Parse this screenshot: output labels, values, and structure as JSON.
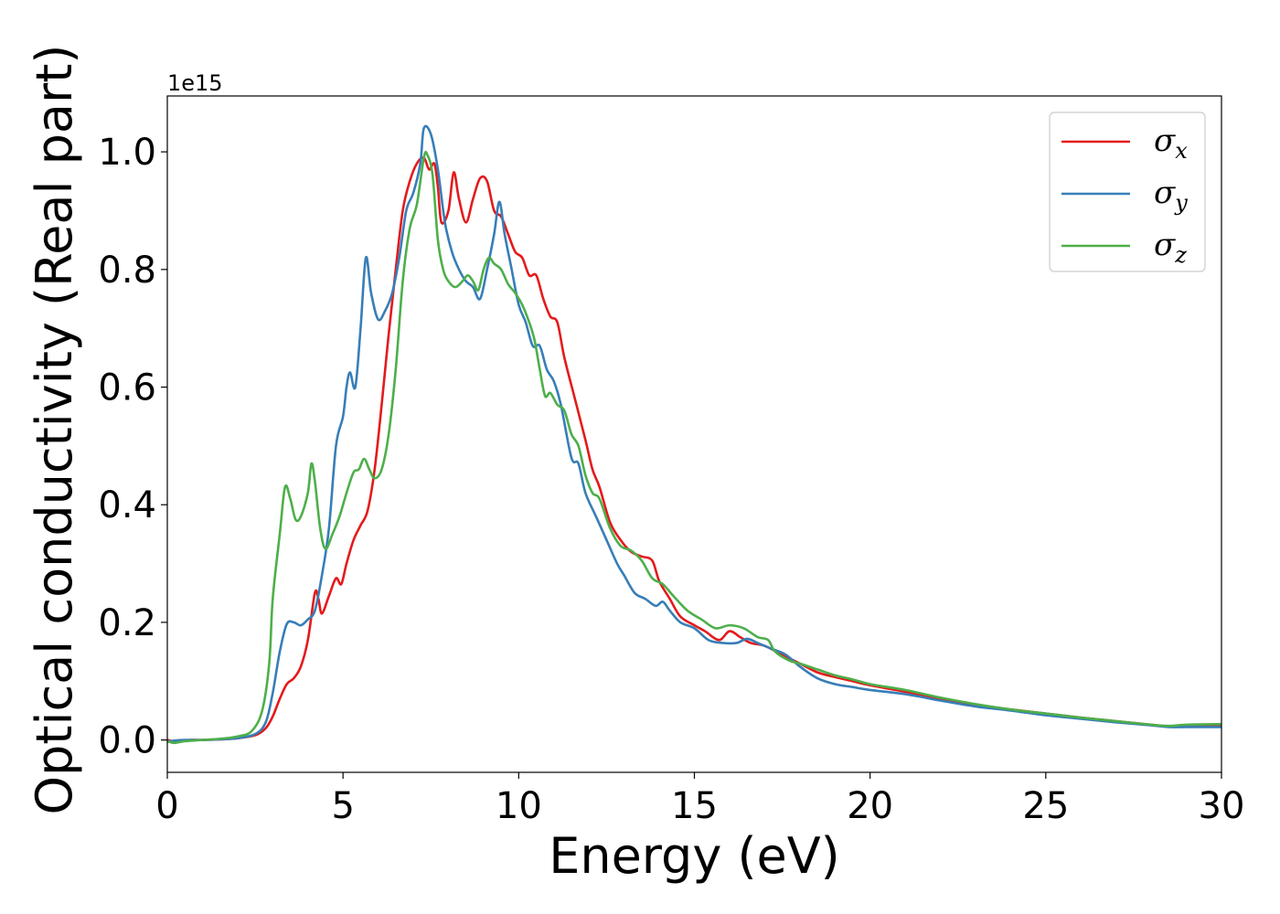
{
  "chart_data": {
    "type": "line",
    "xlabel": "Energy (eV)",
    "ylabel": "Optical conductivity (Real part)",
    "y_offset_text": "1e15",
    "xlim": [
      0,
      30
    ],
    "ylim": [
      -0.055,
      1.095
    ],
    "x_ticks": [
      0,
      5,
      10,
      15,
      20,
      25,
      30
    ],
    "x_tick_labels": [
      "0",
      "5",
      "10",
      "15",
      "20",
      "25",
      "30"
    ],
    "y_ticks": [
      0.0,
      0.2,
      0.4,
      0.6,
      0.8,
      1.0
    ],
    "y_tick_labels": [
      "0.0",
      "0.2",
      "0.4",
      "0.6",
      "0.8",
      "1.0"
    ],
    "grid": false,
    "legend_position": "top-right",
    "series": [
      {
        "name": "σx",
        "base": "σ",
        "sub": "x",
        "color": "#e41a1c",
        "points": [
          [
            0,
            0
          ],
          [
            0.3,
            -0.003
          ],
          [
            0.6,
            0
          ],
          [
            1,
            0
          ],
          [
            1.5,
            0.001
          ],
          [
            2,
            0.003
          ],
          [
            2.5,
            0.008
          ],
          [
            2.8,
            0.02
          ],
          [
            3.0,
            0.04
          ],
          [
            3.2,
            0.07
          ],
          [
            3.4,
            0.095
          ],
          [
            3.6,
            0.105
          ],
          [
            3.8,
            0.125
          ],
          [
            4.0,
            0.17
          ],
          [
            4.2,
            0.25
          ],
          [
            4.3,
            0.24
          ],
          [
            4.4,
            0.215
          ],
          [
            4.6,
            0.245
          ],
          [
            4.8,
            0.275
          ],
          [
            4.95,
            0.265
          ],
          [
            5.1,
            0.3
          ],
          [
            5.3,
            0.34
          ],
          [
            5.5,
            0.365
          ],
          [
            5.7,
            0.39
          ],
          [
            5.9,
            0.46
          ],
          [
            6.1,
            0.57
          ],
          [
            6.3,
            0.69
          ],
          [
            6.5,
            0.8
          ],
          [
            6.7,
            0.9
          ],
          [
            6.9,
            0.95
          ],
          [
            7.1,
            0.98
          ],
          [
            7.3,
            0.99
          ],
          [
            7.45,
            0.97
          ],
          [
            7.6,
            0.98
          ],
          [
            7.7,
            0.94
          ],
          [
            7.8,
            0.88
          ],
          [
            8.0,
            0.9
          ],
          [
            8.15,
            0.965
          ],
          [
            8.3,
            0.92
          ],
          [
            8.5,
            0.88
          ],
          [
            8.7,
            0.92
          ],
          [
            8.9,
            0.955
          ],
          [
            9.1,
            0.95
          ],
          [
            9.3,
            0.9
          ],
          [
            9.5,
            0.89
          ],
          [
            9.7,
            0.86
          ],
          [
            9.9,
            0.83
          ],
          [
            10.1,
            0.82
          ],
          [
            10.3,
            0.79
          ],
          [
            10.5,
            0.79
          ],
          [
            10.7,
            0.75
          ],
          [
            10.9,
            0.72
          ],
          [
            11.1,
            0.71
          ],
          [
            11.3,
            0.65
          ],
          [
            11.6,
            0.58
          ],
          [
            11.9,
            0.51
          ],
          [
            12.1,
            0.46
          ],
          [
            12.3,
            0.43
          ],
          [
            12.6,
            0.37
          ],
          [
            12.9,
            0.34
          ],
          [
            13.2,
            0.32
          ],
          [
            13.5,
            0.312
          ],
          [
            13.8,
            0.305
          ],
          [
            14.0,
            0.27
          ],
          [
            14.3,
            0.24
          ],
          [
            14.6,
            0.21
          ],
          [
            15.0,
            0.195
          ],
          [
            15.3,
            0.185
          ],
          [
            15.7,
            0.17
          ],
          [
            16.0,
            0.185
          ],
          [
            16.3,
            0.175
          ],
          [
            16.6,
            0.165
          ],
          [
            17.0,
            0.16
          ],
          [
            17.5,
            0.145
          ],
          [
            18,
            0.13
          ],
          [
            18.5,
            0.115
          ],
          [
            19,
            0.107
          ],
          [
            19.5,
            0.1
          ],
          [
            20,
            0.093
          ],
          [
            21,
            0.082
          ],
          [
            22,
            0.07
          ],
          [
            23,
            0.06
          ],
          [
            24,
            0.052
          ],
          [
            25,
            0.045
          ],
          [
            26,
            0.038
          ],
          [
            27,
            0.032
          ],
          [
            28,
            0.026
          ],
          [
            28.5,
            0.023
          ],
          [
            29,
            0.024
          ],
          [
            30,
            0.025
          ]
        ]
      },
      {
        "name": "σy",
        "base": "σ",
        "sub": "y",
        "color": "#377eb8",
        "points": [
          [
            0,
            -0.003
          ],
          [
            0.2,
            -0.001
          ],
          [
            0.5,
            0
          ],
          [
            1,
            0
          ],
          [
            1.5,
            0.001
          ],
          [
            2,
            0.003
          ],
          [
            2.5,
            0.01
          ],
          [
            2.8,
            0.03
          ],
          [
            3.0,
            0.08
          ],
          [
            3.2,
            0.15
          ],
          [
            3.4,
            0.197
          ],
          [
            3.6,
            0.2
          ],
          [
            3.8,
            0.195
          ],
          [
            4.0,
            0.205
          ],
          [
            4.2,
            0.22
          ],
          [
            4.4,
            0.28
          ],
          [
            4.6,
            0.36
          ],
          [
            4.8,
            0.5
          ],
          [
            5.0,
            0.55
          ],
          [
            5.1,
            0.6
          ],
          [
            5.2,
            0.625
          ],
          [
            5.35,
            0.6
          ],
          [
            5.5,
            0.7
          ],
          [
            5.65,
            0.82
          ],
          [
            5.8,
            0.76
          ],
          [
            6.0,
            0.715
          ],
          [
            6.2,
            0.73
          ],
          [
            6.4,
            0.76
          ],
          [
            6.6,
            0.82
          ],
          [
            6.8,
            0.9
          ],
          [
            7.0,
            0.93
          ],
          [
            7.2,
            0.98
          ],
          [
            7.3,
            1.04
          ],
          [
            7.5,
            1.03
          ],
          [
            7.7,
            0.97
          ],
          [
            7.9,
            0.88
          ],
          [
            8.1,
            0.83
          ],
          [
            8.3,
            0.8
          ],
          [
            8.5,
            0.78
          ],
          [
            8.7,
            0.77
          ],
          [
            8.9,
            0.75
          ],
          [
            9.1,
            0.8
          ],
          [
            9.3,
            0.86
          ],
          [
            9.45,
            0.915
          ],
          [
            9.6,
            0.86
          ],
          [
            9.8,
            0.8
          ],
          [
            10.0,
            0.74
          ],
          [
            10.2,
            0.71
          ],
          [
            10.4,
            0.67
          ],
          [
            10.6,
            0.67
          ],
          [
            10.8,
            0.63
          ],
          [
            11.0,
            0.61
          ],
          [
            11.2,
            0.57
          ],
          [
            11.5,
            0.48
          ],
          [
            11.7,
            0.47
          ],
          [
            11.9,
            0.42
          ],
          [
            12.2,
            0.38
          ],
          [
            12.5,
            0.34
          ],
          [
            12.8,
            0.3
          ],
          [
            13.0,
            0.28
          ],
          [
            13.3,
            0.25
          ],
          [
            13.6,
            0.24
          ],
          [
            13.9,
            0.228
          ],
          [
            14.1,
            0.235
          ],
          [
            14.3,
            0.22
          ],
          [
            14.6,
            0.2
          ],
          [
            15.0,
            0.19
          ],
          [
            15.4,
            0.17
          ],
          [
            15.8,
            0.165
          ],
          [
            16.2,
            0.165
          ],
          [
            16.5,
            0.172
          ],
          [
            16.8,
            0.165
          ],
          [
            17.2,
            0.155
          ],
          [
            17.6,
            0.145
          ],
          [
            18,
            0.125
          ],
          [
            18.5,
            0.105
          ],
          [
            19,
            0.095
          ],
          [
            19.5,
            0.09
          ],
          [
            20,
            0.085
          ],
          [
            21,
            0.078
          ],
          [
            22,
            0.067
          ],
          [
            23,
            0.057
          ],
          [
            24,
            0.05
          ],
          [
            25,
            0.042
          ],
          [
            26,
            0.036
          ],
          [
            27,
            0.03
          ],
          [
            28,
            0.025
          ],
          [
            28.5,
            0.022
          ],
          [
            29,
            0.022
          ],
          [
            30,
            0.022
          ]
        ]
      },
      {
        "name": "σz",
        "base": "σ",
        "sub": "z",
        "color": "#4daf4a",
        "points": [
          [
            0,
            -0.002
          ],
          [
            0.2,
            -0.005
          ],
          [
            0.5,
            -0.002
          ],
          [
            1,
            0
          ],
          [
            1.5,
            0.002
          ],
          [
            2,
            0.006
          ],
          [
            2.4,
            0.015
          ],
          [
            2.7,
            0.05
          ],
          [
            2.9,
            0.13
          ],
          [
            3.0,
            0.24
          ],
          [
            3.2,
            0.35
          ],
          [
            3.35,
            0.43
          ],
          [
            3.5,
            0.41
          ],
          [
            3.65,
            0.375
          ],
          [
            3.8,
            0.38
          ],
          [
            4.0,
            0.42
          ],
          [
            4.1,
            0.47
          ],
          [
            4.2,
            0.44
          ],
          [
            4.35,
            0.36
          ],
          [
            4.5,
            0.325
          ],
          [
            4.7,
            0.35
          ],
          [
            4.9,
            0.38
          ],
          [
            5.1,
            0.42
          ],
          [
            5.3,
            0.455
          ],
          [
            5.45,
            0.46
          ],
          [
            5.6,
            0.478
          ],
          [
            5.75,
            0.46
          ],
          [
            5.9,
            0.445
          ],
          [
            6.1,
            0.46
          ],
          [
            6.3,
            0.52
          ],
          [
            6.5,
            0.63
          ],
          [
            6.7,
            0.78
          ],
          [
            6.9,
            0.87
          ],
          [
            7.1,
            0.91
          ],
          [
            7.3,
            0.99
          ],
          [
            7.4,
            0.995
          ],
          [
            7.55,
            0.96
          ],
          [
            7.7,
            0.85
          ],
          [
            7.85,
            0.8
          ],
          [
            8.0,
            0.78
          ],
          [
            8.2,
            0.77
          ],
          [
            8.4,
            0.78
          ],
          [
            8.55,
            0.79
          ],
          [
            8.7,
            0.78
          ],
          [
            8.85,
            0.765
          ],
          [
            9.0,
            0.8
          ],
          [
            9.15,
            0.82
          ],
          [
            9.3,
            0.81
          ],
          [
            9.5,
            0.8
          ],
          [
            9.7,
            0.775
          ],
          [
            9.9,
            0.76
          ],
          [
            10.1,
            0.74
          ],
          [
            10.3,
            0.71
          ],
          [
            10.45,
            0.68
          ],
          [
            10.6,
            0.63
          ],
          [
            10.75,
            0.585
          ],
          [
            10.9,
            0.59
          ],
          [
            11.1,
            0.57
          ],
          [
            11.3,
            0.56
          ],
          [
            11.5,
            0.52
          ],
          [
            11.7,
            0.5
          ],
          [
            11.9,
            0.45
          ],
          [
            12.1,
            0.42
          ],
          [
            12.3,
            0.41
          ],
          [
            12.6,
            0.36
          ],
          [
            12.9,
            0.33
          ],
          [
            13.2,
            0.322
          ],
          [
            13.5,
            0.305
          ],
          [
            13.8,
            0.275
          ],
          [
            14.1,
            0.265
          ],
          [
            14.4,
            0.245
          ],
          [
            14.8,
            0.22
          ],
          [
            15.2,
            0.205
          ],
          [
            15.6,
            0.19
          ],
          [
            16.0,
            0.195
          ],
          [
            16.4,
            0.19
          ],
          [
            16.8,
            0.175
          ],
          [
            17.1,
            0.17
          ],
          [
            17.3,
            0.15
          ],
          [
            17.7,
            0.135
          ],
          [
            18,
            0.13
          ],
          [
            18.5,
            0.12
          ],
          [
            19,
            0.11
          ],
          [
            19.5,
            0.103
          ],
          [
            20,
            0.095
          ],
          [
            21,
            0.085
          ],
          [
            22,
            0.072
          ],
          [
            23,
            0.061
          ],
          [
            24,
            0.052
          ],
          [
            25,
            0.045
          ],
          [
            26,
            0.038
          ],
          [
            27,
            0.032
          ],
          [
            28,
            0.026
          ],
          [
            28.5,
            0.024
          ],
          [
            29,
            0.026
          ],
          [
            30,
            0.027
          ]
        ]
      }
    ]
  }
}
